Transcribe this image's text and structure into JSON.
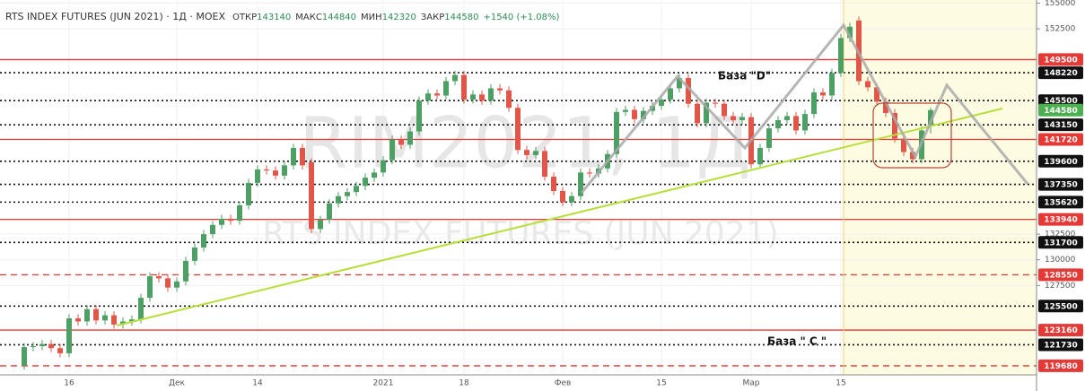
{
  "chart_data": {
    "type": "candlestick",
    "title": "RTS INDEX FUTURES (JUN 2021) · 1Д · MOEX",
    "ohlc_labels": [
      "ОТКР",
      "МАКС",
      "МИН",
      "ЗАКР"
    ],
    "change": "+1540 (+1.08%)",
    "watermark": "RIM2021, 1Д",
    "watermark_subtitle": "RTS INDEX FUTURES (JUN 2021)",
    "annotations": [
      "База \"D\"",
      "База \" C \""
    ],
    "up_color": "#4e9f63",
    "down_color": "#e0574a",
    "last_color": "#4caf50",
    "xlim": [
      -2.7,
      112.8
    ],
    "ylim": [
      118800,
      155300
    ],
    "xticks": [
      {
        "value": 5,
        "label": "16"
      },
      {
        "value": 17,
        "label": "Дек"
      },
      {
        "value": 26,
        "label": "14"
      },
      {
        "value": 40,
        "label": "2021"
      },
      {
        "value": 49,
        "label": "18"
      },
      {
        "value": 60,
        "label": "Фев"
      },
      {
        "value": 71,
        "label": "15"
      },
      {
        "value": 81,
        "label": "Мар"
      },
      {
        "value": 91,
        "label": "15"
      }
    ],
    "yticks": [
      155000,
      152500,
      132500,
      130000,
      127500
    ],
    "grid": true,
    "levels": [
      {
        "value": 149500,
        "style": "solid",
        "color": "#e53935"
      },
      {
        "value": 148220,
        "style": "dotted",
        "color": "#111111"
      },
      {
        "value": 145500,
        "style": "dotted",
        "color": "#111111"
      },
      {
        "value": 143150,
        "style": "dotted",
        "color": "#111111"
      },
      {
        "value": 141720,
        "style": "solid",
        "color": "#e53935"
      },
      {
        "value": 139600,
        "style": "dotted",
        "color": "#111111"
      },
      {
        "value": 137350,
        "style": "dotted",
        "color": "#111111"
      },
      {
        "value": 135620,
        "style": "dotted",
        "color": "#111111"
      },
      {
        "value": 133940,
        "style": "solid",
        "color": "#e53935"
      },
      {
        "value": 131700,
        "style": "dotted",
        "color": "#111111"
      },
      {
        "value": 128550,
        "style": "dashed",
        "color": "#e53935"
      },
      {
        "value": 125500,
        "style": "dotted",
        "color": "#111111"
      },
      {
        "value": 123160,
        "style": "solid",
        "color": "#e53935"
      },
      {
        "value": 121730,
        "style": "dotted",
        "color": "#111111"
      },
      {
        "value": 119680,
        "style": "dashed",
        "color": "#e53935"
      }
    ],
    "open": [
      119700,
      121500,
      121600,
      121800,
      121400,
      120900,
      124300,
      124000,
      125200,
      124100,
      124600,
      123700,
      124000,
      124200,
      126300,
      128400,
      128200,
      127300,
      127900,
      129900,
      131200,
      132500,
      133400,
      134000,
      133800,
      135300,
      137500,
      138800,
      138700,
      138200,
      139200,
      140900,
      139500,
      133000,
      133900,
      135500,
      136200,
      136600,
      137200,
      138000,
      138500,
      139700,
      141700,
      141200,
      142500,
      145500,
      146200,
      146000,
      147400,
      148000,
      145600,
      146100,
      145500,
      146700,
      146500,
      144800,
      140700,
      140200,
      140600,
      138100,
      136700,
      135600,
      136200,
      138500,
      138400,
      138900,
      140300,
      144400,
      144600,
      143700,
      144500,
      145000,
      145600,
      146700,
      147700,
      145200,
      143300,
      145300,
      145200,
      144000,
      143600,
      143900,
      139300,
      140900,
      142800,
      143600,
      144000,
      142600,
      144200,
      146300,
      146000,
      148200,
      151600,
      153300,
      147400,
      146800,
      145400,
      144300,
      141800,
      140500,
      139800,
      143140
    ],
    "high": [
      121900,
      122000,
      122200,
      122200,
      121800,
      124700,
      124700,
      125600,
      125600,
      125000,
      125000,
      124400,
      124600,
      126700,
      128800,
      128800,
      128600,
      128300,
      130300,
      131600,
      132900,
      133800,
      134400,
      134400,
      135700,
      137900,
      139200,
      139200,
      139100,
      139600,
      141300,
      141300,
      139900,
      134300,
      135900,
      136600,
      137000,
      137600,
      138400,
      138900,
      140100,
      142100,
      142100,
      142900,
      145900,
      146600,
      146600,
      147800,
      148400,
      148400,
      146500,
      146500,
      147100,
      147100,
      146900,
      145200,
      141100,
      141000,
      141000,
      138500,
      137100,
      136600,
      138900,
      138900,
      139300,
      140700,
      144800,
      145000,
      145000,
      144900,
      145400,
      146000,
      147100,
      148100,
      148100,
      145600,
      145700,
      145700,
      145600,
      144400,
      144300,
      144300,
      141300,
      143200,
      144000,
      144400,
      144400,
      144600,
      146700,
      146700,
      148600,
      152000,
      153100,
      153700,
      147800,
      147200,
      145800,
      144700,
      142200,
      140900,
      143000,
      144840
    ],
    "low": [
      119300,
      121100,
      121200,
      121000,
      120500,
      120500,
      123600,
      123600,
      123700,
      123700,
      123300,
      123300,
      123600,
      123800,
      125900,
      127800,
      126900,
      126900,
      127500,
      129500,
      130800,
      132100,
      133000,
      133400,
      133400,
      134900,
      137100,
      138300,
      137800,
      137800,
      138800,
      138800,
      132600,
      132600,
      133500,
      135100,
      135800,
      136200,
      136800,
      137600,
      138100,
      139300,
      140800,
      140800,
      142100,
      145100,
      145600,
      145600,
      147000,
      145200,
      145200,
      145100,
      145100,
      146100,
      144400,
      140300,
      139800,
      139800,
      137700,
      136300,
      135200,
      135200,
      135800,
      138000,
      138000,
      138500,
      139900,
      144000,
      143300,
      143300,
      144100,
      144600,
      145200,
      146300,
      144800,
      142900,
      142900,
      144800,
      143600,
      143200,
      143200,
      138900,
      138900,
      140500,
      142400,
      143200,
      142200,
      142200,
      143800,
      145600,
      145600,
      147800,
      151200,
      147000,
      146400,
      145000,
      143900,
      141400,
      140100,
      139400,
      139400,
      142320
    ],
    "close": [
      121500,
      121600,
      121800,
      121400,
      120900,
      124300,
      124000,
      125200,
      124100,
      124600,
      123700,
      124000,
      124200,
      126300,
      128400,
      128200,
      127300,
      127900,
      129900,
      131200,
      132500,
      133400,
      134000,
      133800,
      135300,
      137500,
      138800,
      138700,
      138200,
      139200,
      140900,
      139200,
      133000,
      133900,
      135500,
      136200,
      136600,
      137200,
      138000,
      138500,
      139700,
      141700,
      141200,
      142500,
      145500,
      146200,
      146000,
      147400,
      148000,
      145600,
      146100,
      145500,
      146700,
      146500,
      144800,
      140700,
      140200,
      140600,
      138100,
      136700,
      135600,
      136200,
      138500,
      138400,
      138900,
      140300,
      144400,
      144600,
      143700,
      144500,
      145000,
      145600,
      146700,
      147700,
      145200,
      143300,
      145300,
      145200,
      144000,
      143600,
      143900,
      139300,
      140900,
      142800,
      143600,
      144000,
      142600,
      144200,
      146300,
      146000,
      148200,
      151600,
      152700,
      147400,
      146800,
      145400,
      144300,
      141800,
      140500,
      139800,
      142600,
      144580
    ]
  }
}
